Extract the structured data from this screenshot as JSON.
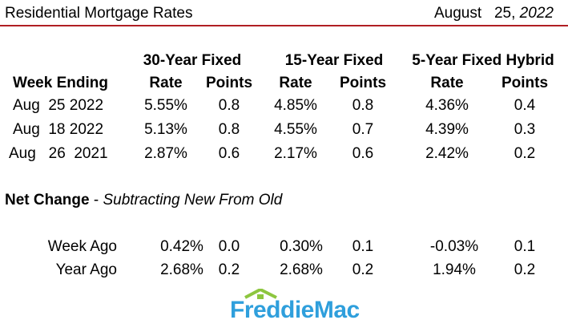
{
  "header": {
    "title": "Residential Mortgage Rates",
    "date_month_day": "August   25,",
    "date_year": " 2022"
  },
  "columns": {
    "group_30": "30-Year Fixed",
    "group_15": "15-Year Fixed",
    "group_5": "5-Year Fixed Hybrid",
    "week_ending": "Week Ending",
    "rate": "Rate",
    "points": "Points"
  },
  "rows": [
    {
      "date": "Aug  25 2022",
      "r30": "5.55%",
      "p30": "0.8",
      "r15": "4.85%",
      "p15": "0.8",
      "r5": "4.36%",
      "p5": "0.4"
    },
    {
      "date": "Aug  18 2022",
      "r30": "5.13%",
      "p30": "0.8",
      "r15": "4.55%",
      "p15": "0.7",
      "r5": "4.39%",
      "p5": "0.3"
    },
    {
      "date": "Aug   26  2021",
      "r30": "2.87%",
      "p30": "0.6",
      "r15": "2.17%",
      "p15": "0.6",
      "r5": "2.42%",
      "p5": "0.2"
    }
  ],
  "net_change": {
    "label": "Net Change",
    "sep": " - ",
    "subtitle": "Subtracting New From Old",
    "rows": [
      {
        "label": "Week Ago",
        "r30": "0.42%",
        "p30": "0.0",
        "r15": "0.30%",
        "p15": "0.1",
        "r5": "-0.03%",
        "p5": "0.1"
      },
      {
        "label": "Year Ago",
        "r30": "2.68%",
        "p30": "0.2",
        "r15": "2.68%",
        "p15": "0.2",
        "r5": "1.94%",
        "p5": "0.2"
      }
    ]
  },
  "logo": {
    "text": "FreddieMac",
    "color": "#2f9fdc",
    "roof_color": "#8dc63f"
  },
  "accent_rule_color": "#b01e23"
}
